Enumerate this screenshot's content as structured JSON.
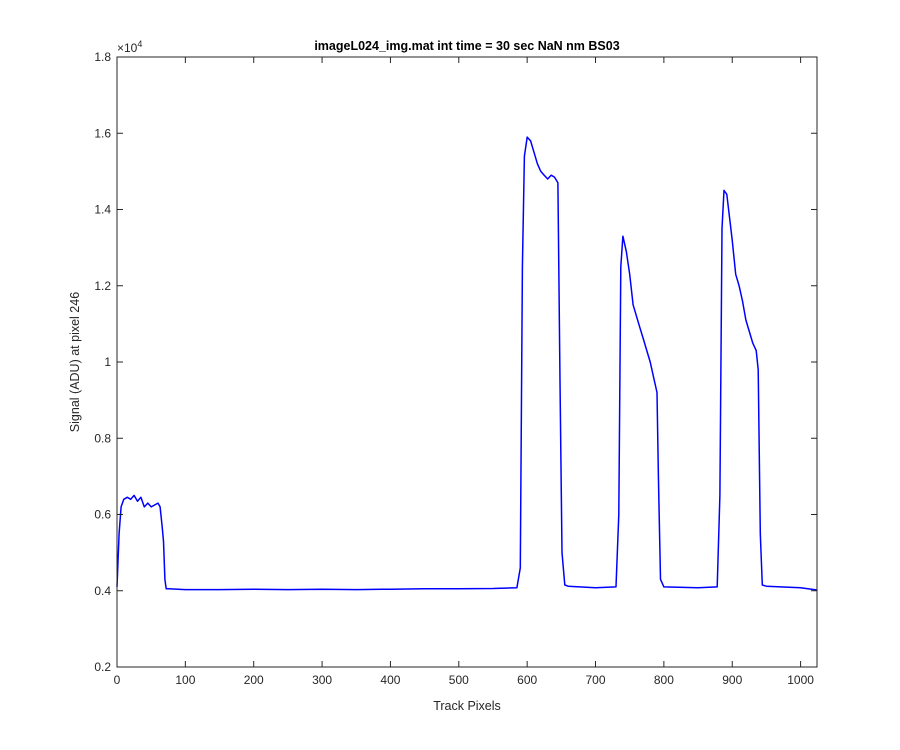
{
  "chart_data": {
    "type": "line",
    "title": "imageL024_img.mat int time = 30 sec  NaN nm BS03",
    "xlabel": "Track Pixels",
    "ylabel": "Signal (ADU) at pixel 246",
    "y_exponent_label": "×10",
    "y_exponent_power": "4",
    "xlim": [
      0,
      1024
    ],
    "ylim": [
      2000,
      18000
    ],
    "xticks": [
      0,
      100,
      200,
      300,
      400,
      500,
      600,
      700,
      800,
      900,
      1000
    ],
    "yticks": [
      2000,
      4000,
      6000,
      8000,
      10000,
      12000,
      14000,
      16000,
      18000
    ],
    "xtick_labels": [
      "0",
      "100",
      "200",
      "300",
      "400",
      "500",
      "600",
      "700",
      "800",
      "900",
      "1000"
    ],
    "ytick_labels": [
      "0.2",
      "0.4",
      "0.6",
      "0.8",
      "1",
      "1.2",
      "1.4",
      "1.6",
      "1.8"
    ],
    "grid": false,
    "series": [
      {
        "color": "#0000ff",
        "x": [
          0,
          3,
          6,
          10,
          15,
          20,
          25,
          30,
          35,
          40,
          45,
          50,
          55,
          60,
          63,
          66,
          68,
          70,
          72,
          75,
          100,
          150,
          200,
          250,
          300,
          350,
          400,
          450,
          500,
          550,
          585,
          590,
          593,
          596,
          600,
          605,
          610,
          615,
          620,
          625,
          630,
          635,
          640,
          645,
          648,
          651,
          655,
          660,
          700,
          730,
          734,
          737,
          740,
          745,
          750,
          755,
          760,
          765,
          770,
          775,
          780,
          785,
          790,
          792,
          795,
          800,
          850,
          878,
          882,
          885,
          888,
          892,
          896,
          900,
          905,
          910,
          915,
          920,
          925,
          930,
          935,
          938,
          941,
          944,
          950,
          1000,
          1024
        ],
        "y": [
          4100,
          5500,
          6200,
          6400,
          6450,
          6400,
          6500,
          6350,
          6450,
          6200,
          6300,
          6200,
          6250,
          6300,
          6200,
          5700,
          5300,
          4300,
          4050,
          4050,
          4030,
          4030,
          4040,
          4030,
          4040,
          4030,
          4040,
          4050,
          4050,
          4060,
          4080,
          4600,
          12500,
          15400,
          15900,
          15800,
          15500,
          15200,
          15000,
          14900,
          14800,
          14900,
          14850,
          14700,
          9500,
          5000,
          4150,
          4120,
          4080,
          4100,
          6000,
          12500,
          13300,
          12900,
          12300,
          11500,
          11200,
          10900,
          10600,
          10300,
          10000,
          9600,
          9200,
          7000,
          4300,
          4100,
          4080,
          4100,
          6500,
          13500,
          14500,
          14400,
          13800,
          13200,
          12300,
          12000,
          11600,
          11100,
          10800,
          10500,
          10300,
          9800,
          5500,
          4150,
          4120,
          4080,
          4020
        ]
      }
    ]
  }
}
